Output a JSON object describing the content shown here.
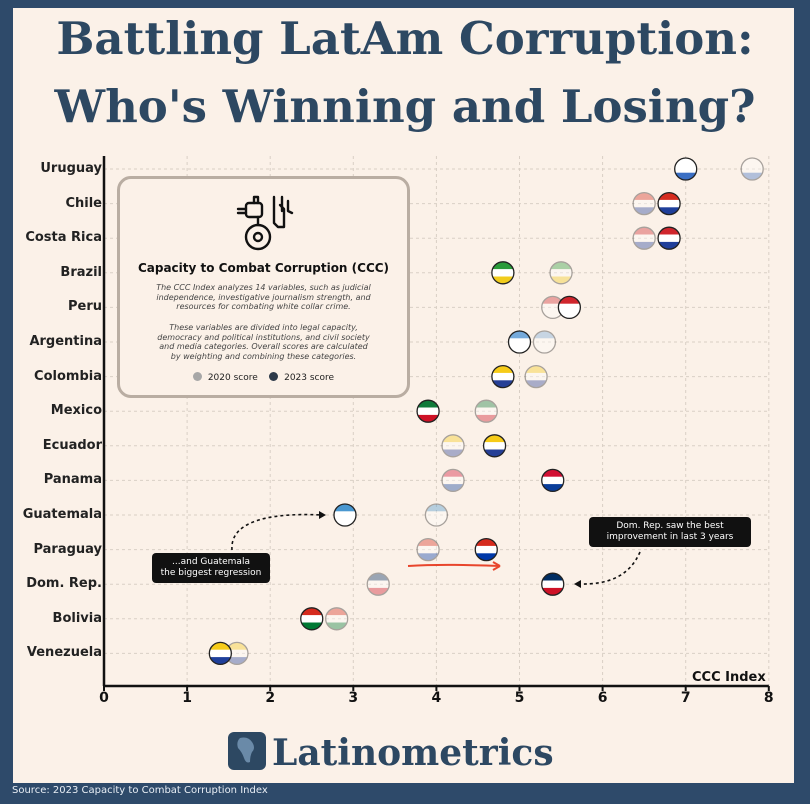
{
  "title_line1": "Battling LatAm Corruption:",
  "title_line2": "Who's Winning and Losing?",
  "info": {
    "title": "Capacity to Combat Corruption (CCC)",
    "desc1_l1": "The CCC Index analyzes 14 variables, such as judicial",
    "desc1_l2": "independence, investigative journalism strength, and",
    "desc1_l3": "resources for combating white collar crime.",
    "desc2_l1": "These variables are divided into legal capacity,",
    "desc2_l2": "democracy and political institutions, and civil society",
    "desc2_l3": "and media categories. Overall scores are calculated",
    "desc2_l4": "by weighting and combining these categories.",
    "legend_2020": "2020 score",
    "legend_2023": "2023 score",
    "color_2020": "#a7a7a7",
    "color_2023": "#2d3a4a"
  },
  "callout_right_l1": "Dom. Rep. saw the best",
  "callout_right_l2": "improvement in last 3 years",
  "callout_left_l1": "...and Guatemala",
  "callout_left_l2": "the biggest regression",
  "brand": "Latinometrics",
  "source": "Source: 2023 Capacity to Combat Corruption Index",
  "chart_data": {
    "type": "scatter",
    "xlabel": "CCC Index",
    "xlim": [
      0,
      8
    ],
    "xticks": [
      "0",
      "1",
      "2",
      "3",
      "4",
      "5",
      "6",
      "7",
      "8"
    ],
    "grid": true,
    "legend_placement": "inside-top-left",
    "series": [
      {
        "name": "2020 score",
        "values": [
          7.8,
          6.5,
          6.5,
          5.5,
          5.4,
          5.3,
          5.2,
          4.6,
          4.2,
          4.2,
          4.0,
          3.9,
          3.3,
          2.8,
          1.6
        ]
      },
      {
        "name": "2023 score",
        "values": [
          7.0,
          6.8,
          6.8,
          4.8,
          5.6,
          5.0,
          4.8,
          3.9,
          4.7,
          5.4,
          2.9,
          4.6,
          5.4,
          2.5,
          1.4
        ]
      }
    ],
    "categories": [
      "Uruguay",
      "Chile",
      "Costa Rica",
      "Brazil",
      "Peru",
      "Argentina",
      "Colombia",
      "Mexico",
      "Ecuador",
      "Panama",
      "Guatemala",
      "Paraguay",
      "Dom. Rep.",
      "Bolivia",
      "Venezuela"
    ],
    "flag_colors": [
      [
        "#ffffff",
        "#3a6fc4"
      ],
      [
        "#d52b1e",
        "#1f3f9a"
      ],
      [
        "#d0262d",
        "#1f3f9a"
      ],
      [
        "#2a9b3a",
        "#f1cc1c"
      ],
      [
        "#d0262d",
        "#ffffff"
      ],
      [
        "#75aadb",
        "#ffffff"
      ],
      [
        "#f6cb18",
        "#263f96"
      ],
      [
        "#0f7a3a",
        "#ce1126"
      ],
      [
        "#f6cb18",
        "#263f96"
      ],
      [
        "#d21034",
        "#0a3e9a"
      ],
      [
        "#4997d0",
        "#ffffff"
      ],
      [
        "#d52b1e",
        "#0038a8"
      ],
      [
        "#002d62",
        "#ce1126"
      ],
      [
        "#d52b1e",
        "#007934"
      ],
      [
        "#f6cb18",
        "#1f3f9a"
      ]
    ]
  }
}
